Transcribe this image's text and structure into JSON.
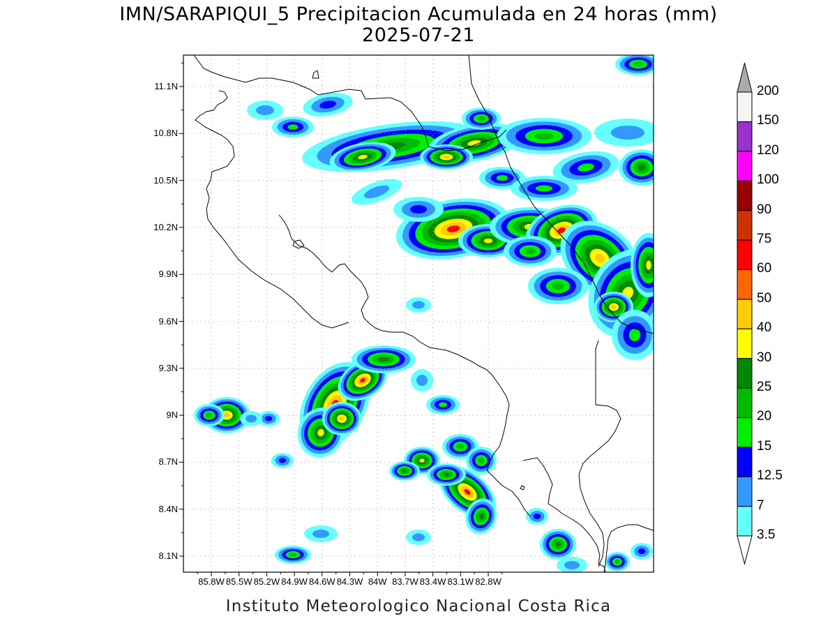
{
  "title_line_1": "IMN/SARAPIQUI_5 Precipitacion Acumulada en 24 horas (mm)",
  "title_line_2": "2025-07-21",
  "footer": "Instituto Meteorologico Nacional Costa Rica",
  "lat_labels": [
    "11.1N",
    "10.8N",
    "10.5N",
    "10.2N",
    "9.9N",
    "9.6N",
    "9.3N",
    "9N",
    "8.7N",
    "8.4N",
    "8.1N"
  ],
  "lon_labels": [
    "85.8W",
    "85.5W",
    "85.2W",
    "84.9W",
    "84.6W",
    "84.3W",
    "84W",
    "83.7W",
    "83.4W",
    "83.1W",
    "82.8W"
  ],
  "colorbar": {
    "levels": [
      "3.5",
      "7",
      "12.5",
      "15",
      "20",
      "25",
      "30",
      "40",
      "50",
      "60",
      "75",
      "90",
      "100",
      "120",
      "150",
      "200"
    ],
    "colors": [
      "#ffffff",
      "#66ffff",
      "#3399ff",
      "#0000ff",
      "#00ee00",
      "#00bb00",
      "#008800",
      "#ffff00",
      "#ffcc00",
      "#ff6600",
      "#ff0000",
      "#cc3300",
      "#990000",
      "#ff00ff",
      "#9933cc",
      "#f5f5f5"
    ],
    "over_color": "#aaaaaa"
  },
  "precip_colors": [
    "#66ffff",
    "#3399ff",
    "#0000ff",
    "#00ee00",
    "#00bb00",
    "#008800",
    "#ffff00",
    "#ffcc00",
    "#ff0000"
  ]
}
